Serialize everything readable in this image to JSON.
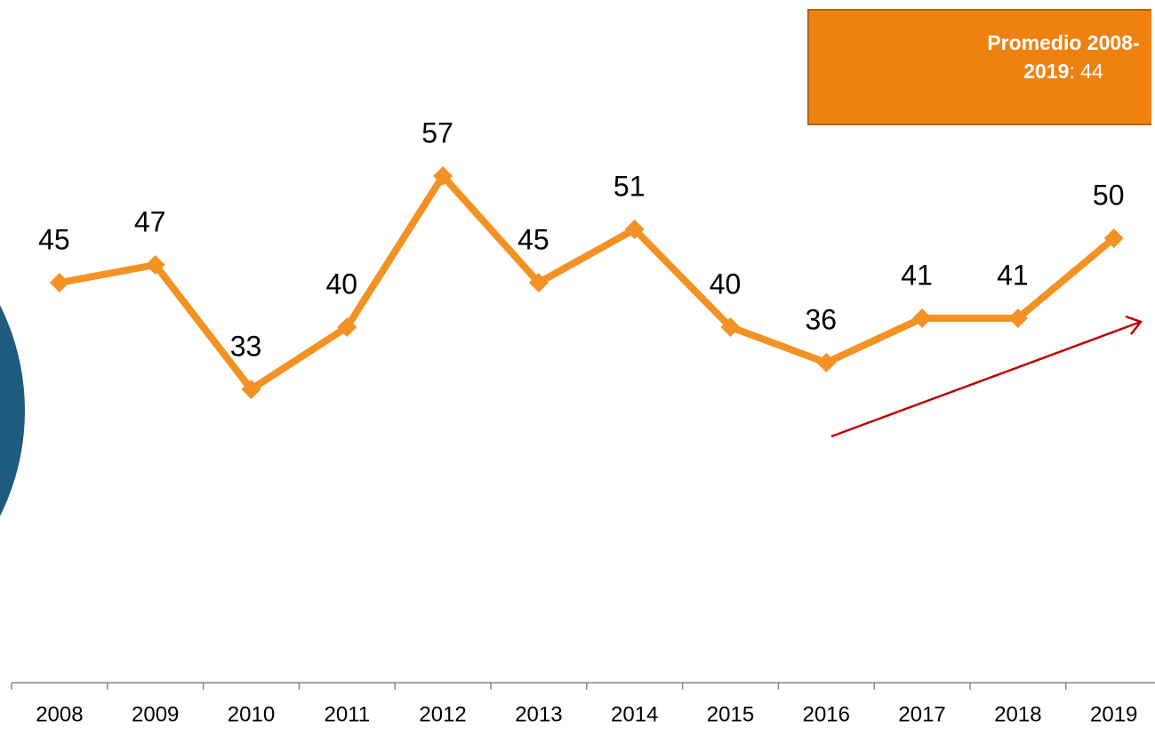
{
  "chart_data": {
    "type": "line",
    "categories": [
      "2008",
      "2009",
      "2010",
      "2011",
      "2012",
      "2013",
      "2014",
      "2015",
      "2016",
      "2017",
      "2018",
      "2019"
    ],
    "series": [
      {
        "name": null,
        "color": "#f39222",
        "values": [
          45,
          47,
          33,
          40,
          57,
          45,
          51,
          40,
          36,
          41,
          41,
          50
        ]
      }
    ],
    "ylim": [
      0,
      70
    ],
    "data_labels": true,
    "annotation": {
      "label": "Promedio 2008-2019",
      "value": 44,
      "value_label": ": 44"
    }
  }
}
